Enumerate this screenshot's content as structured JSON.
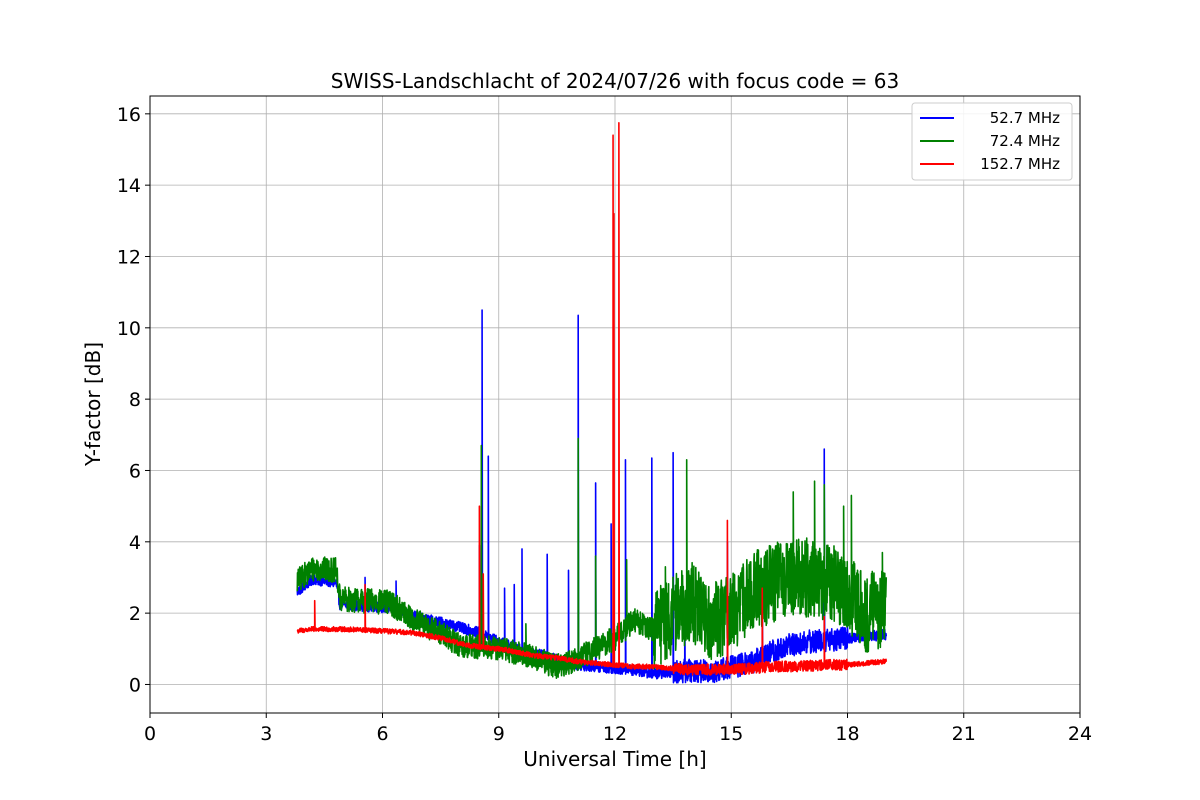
{
  "chart_data": {
    "type": "line",
    "title": "SWISS-Landschlacht of 2024/07/26 with focus code = 63",
    "xlabel": "Universal Time [h]",
    "ylabel": "Y-factor [dB]",
    "xlim": [
      0,
      24
    ],
    "ylim": [
      -0.8,
      16.5
    ],
    "xticks": [
      0,
      3,
      6,
      9,
      12,
      15,
      18,
      21,
      24
    ],
    "yticks": [
      0,
      2,
      4,
      6,
      8,
      10,
      12,
      14,
      16
    ],
    "xtick_labels": [
      "0",
      "3",
      "6",
      "9",
      "12",
      "15",
      "18",
      "21",
      "24"
    ],
    "ytick_labels": [
      "0",
      "2",
      "4",
      "6",
      "8",
      "10",
      "12",
      "14",
      "16"
    ],
    "grid": true,
    "legend_position": "top-right",
    "series": [
      {
        "name": "52.7 MHz",
        "color": "#0000ff",
        "base": [
          [
            3.8,
            2.6
          ],
          [
            4.2,
            2.95
          ],
          [
            4.8,
            2.85
          ],
          [
            4.9,
            2.25
          ],
          [
            5.5,
            2.2
          ],
          [
            6.2,
            2.15
          ],
          [
            7.0,
            1.85
          ],
          [
            7.5,
            1.75
          ],
          [
            8.0,
            1.6
          ],
          [
            8.5,
            1.45
          ],
          [
            9.0,
            1.2
          ],
          [
            9.5,
            1.0
          ],
          [
            10.0,
            0.85
          ],
          [
            10.5,
            0.7
          ],
          [
            11.0,
            0.55
          ],
          [
            11.5,
            0.5
          ],
          [
            12.0,
            0.45
          ],
          [
            12.5,
            0.4
          ],
          [
            13.0,
            0.3
          ],
          [
            13.5,
            0.35
          ],
          [
            14.0,
            0.4
          ],
          [
            14.5,
            0.35
          ],
          [
            15.0,
            0.5
          ],
          [
            15.5,
            0.6
          ],
          [
            16.0,
            0.9
          ],
          [
            16.5,
            1.1
          ],
          [
            17.0,
            1.2
          ],
          [
            17.5,
            1.25
          ],
          [
            18.0,
            1.3
          ],
          [
            18.5,
            1.35
          ],
          [
            19.0,
            1.4
          ]
        ],
        "noise": 0.15,
        "spikes": [
          [
            5.55,
            3.0
          ],
          [
            6.35,
            2.9
          ],
          [
            8.5,
            3.9
          ],
          [
            8.57,
            10.5
          ],
          [
            8.73,
            6.4
          ],
          [
            9.15,
            2.7
          ],
          [
            9.4,
            2.8
          ],
          [
            9.6,
            3.8
          ],
          [
            10.25,
            3.65
          ],
          [
            10.8,
            3.2
          ],
          [
            11.05,
            10.35
          ],
          [
            11.5,
            5.65
          ],
          [
            11.9,
            4.5
          ],
          [
            12.27,
            6.3
          ],
          [
            12.95,
            6.35
          ],
          [
            13.5,
            6.5
          ],
          [
            13.8,
            2.3
          ],
          [
            14.9,
            4.0
          ],
          [
            15.8,
            2.8
          ],
          [
            17.4,
            6.6
          ]
        ]
      },
      {
        "name": "72.4 MHz",
        "color": "#008000",
        "base": [
          [
            3.8,
            2.9
          ],
          [
            4.2,
            3.25
          ],
          [
            4.8,
            3.2
          ],
          [
            4.9,
            2.4
          ],
          [
            5.5,
            2.35
          ],
          [
            6.2,
            2.3
          ],
          [
            6.8,
            1.8
          ],
          [
            7.5,
            1.45
          ],
          [
            8.0,
            1.1
          ],
          [
            8.5,
            1.05
          ],
          [
            9.0,
            1.0
          ],
          [
            9.5,
            0.9
          ],
          [
            10.0,
            0.7
          ],
          [
            10.5,
            0.5
          ],
          [
            11.0,
            0.7
          ],
          [
            11.5,
            1.0
          ],
          [
            12.0,
            1.3
          ],
          [
            12.5,
            1.8
          ],
          [
            13.0,
            1.5
          ],
          [
            13.5,
            2.0
          ],
          [
            14.0,
            2.3
          ],
          [
            14.5,
            1.8
          ],
          [
            15.0,
            2.0
          ],
          [
            15.5,
            2.6
          ],
          [
            16.0,
            2.8
          ],
          [
            16.5,
            3.0
          ],
          [
            17.0,
            3.0
          ],
          [
            17.5,
            2.9
          ],
          [
            18.0,
            2.5
          ],
          [
            18.5,
            2.0
          ],
          [
            19.0,
            2.2
          ]
        ],
        "noise": 0.35,
        "spikes": [
          [
            8.55,
            6.7
          ],
          [
            9.7,
            1.7
          ],
          [
            11.05,
            6.9
          ],
          [
            11.5,
            3.6
          ],
          [
            12.3,
            3.5
          ],
          [
            13.3,
            3.3
          ],
          [
            13.85,
            6.3
          ],
          [
            15.7,
            3.5
          ],
          [
            16.6,
            5.4
          ],
          [
            17.15,
            5.7
          ],
          [
            17.4,
            5.6
          ],
          [
            17.9,
            5.0
          ],
          [
            18.1,
            5.3
          ],
          [
            18.9,
            3.7
          ]
        ]
      },
      {
        "name": "152.7 MHz",
        "color": "#ff0000",
        "base": [
          [
            3.8,
            1.5
          ],
          [
            4.2,
            1.55
          ],
          [
            5.0,
            1.55
          ],
          [
            6.0,
            1.5
          ],
          [
            6.8,
            1.45
          ],
          [
            7.5,
            1.3
          ],
          [
            8.0,
            1.15
          ],
          [
            8.5,
            1.05
          ],
          [
            9.0,
            1.0
          ],
          [
            9.5,
            0.9
          ],
          [
            10.0,
            0.8
          ],
          [
            10.5,
            0.75
          ],
          [
            11.0,
            0.65
          ],
          [
            11.5,
            0.6
          ],
          [
            12.0,
            0.55
          ],
          [
            12.5,
            0.5
          ],
          [
            13.0,
            0.5
          ],
          [
            13.5,
            0.45
          ],
          [
            14.0,
            0.42
          ],
          [
            14.5,
            0.42
          ],
          [
            15.0,
            0.42
          ],
          [
            15.5,
            0.45
          ],
          [
            16.0,
            0.5
          ],
          [
            16.5,
            0.5
          ],
          [
            17.0,
            0.52
          ],
          [
            17.5,
            0.55
          ],
          [
            18.0,
            0.55
          ],
          [
            18.5,
            0.6
          ],
          [
            19.0,
            0.65
          ]
        ],
        "noise": 0.07,
        "spikes": [
          [
            4.25,
            2.35
          ],
          [
            5.55,
            2.8
          ],
          [
            8.5,
            5.0
          ],
          [
            8.6,
            3.1
          ],
          [
            11.95,
            15.4
          ],
          [
            11.97,
            13.2
          ],
          [
            12.1,
            15.75
          ],
          [
            14.9,
            4.6
          ],
          [
            15.8,
            2.7
          ],
          [
            17.4,
            1.9
          ]
        ]
      }
    ]
  }
}
